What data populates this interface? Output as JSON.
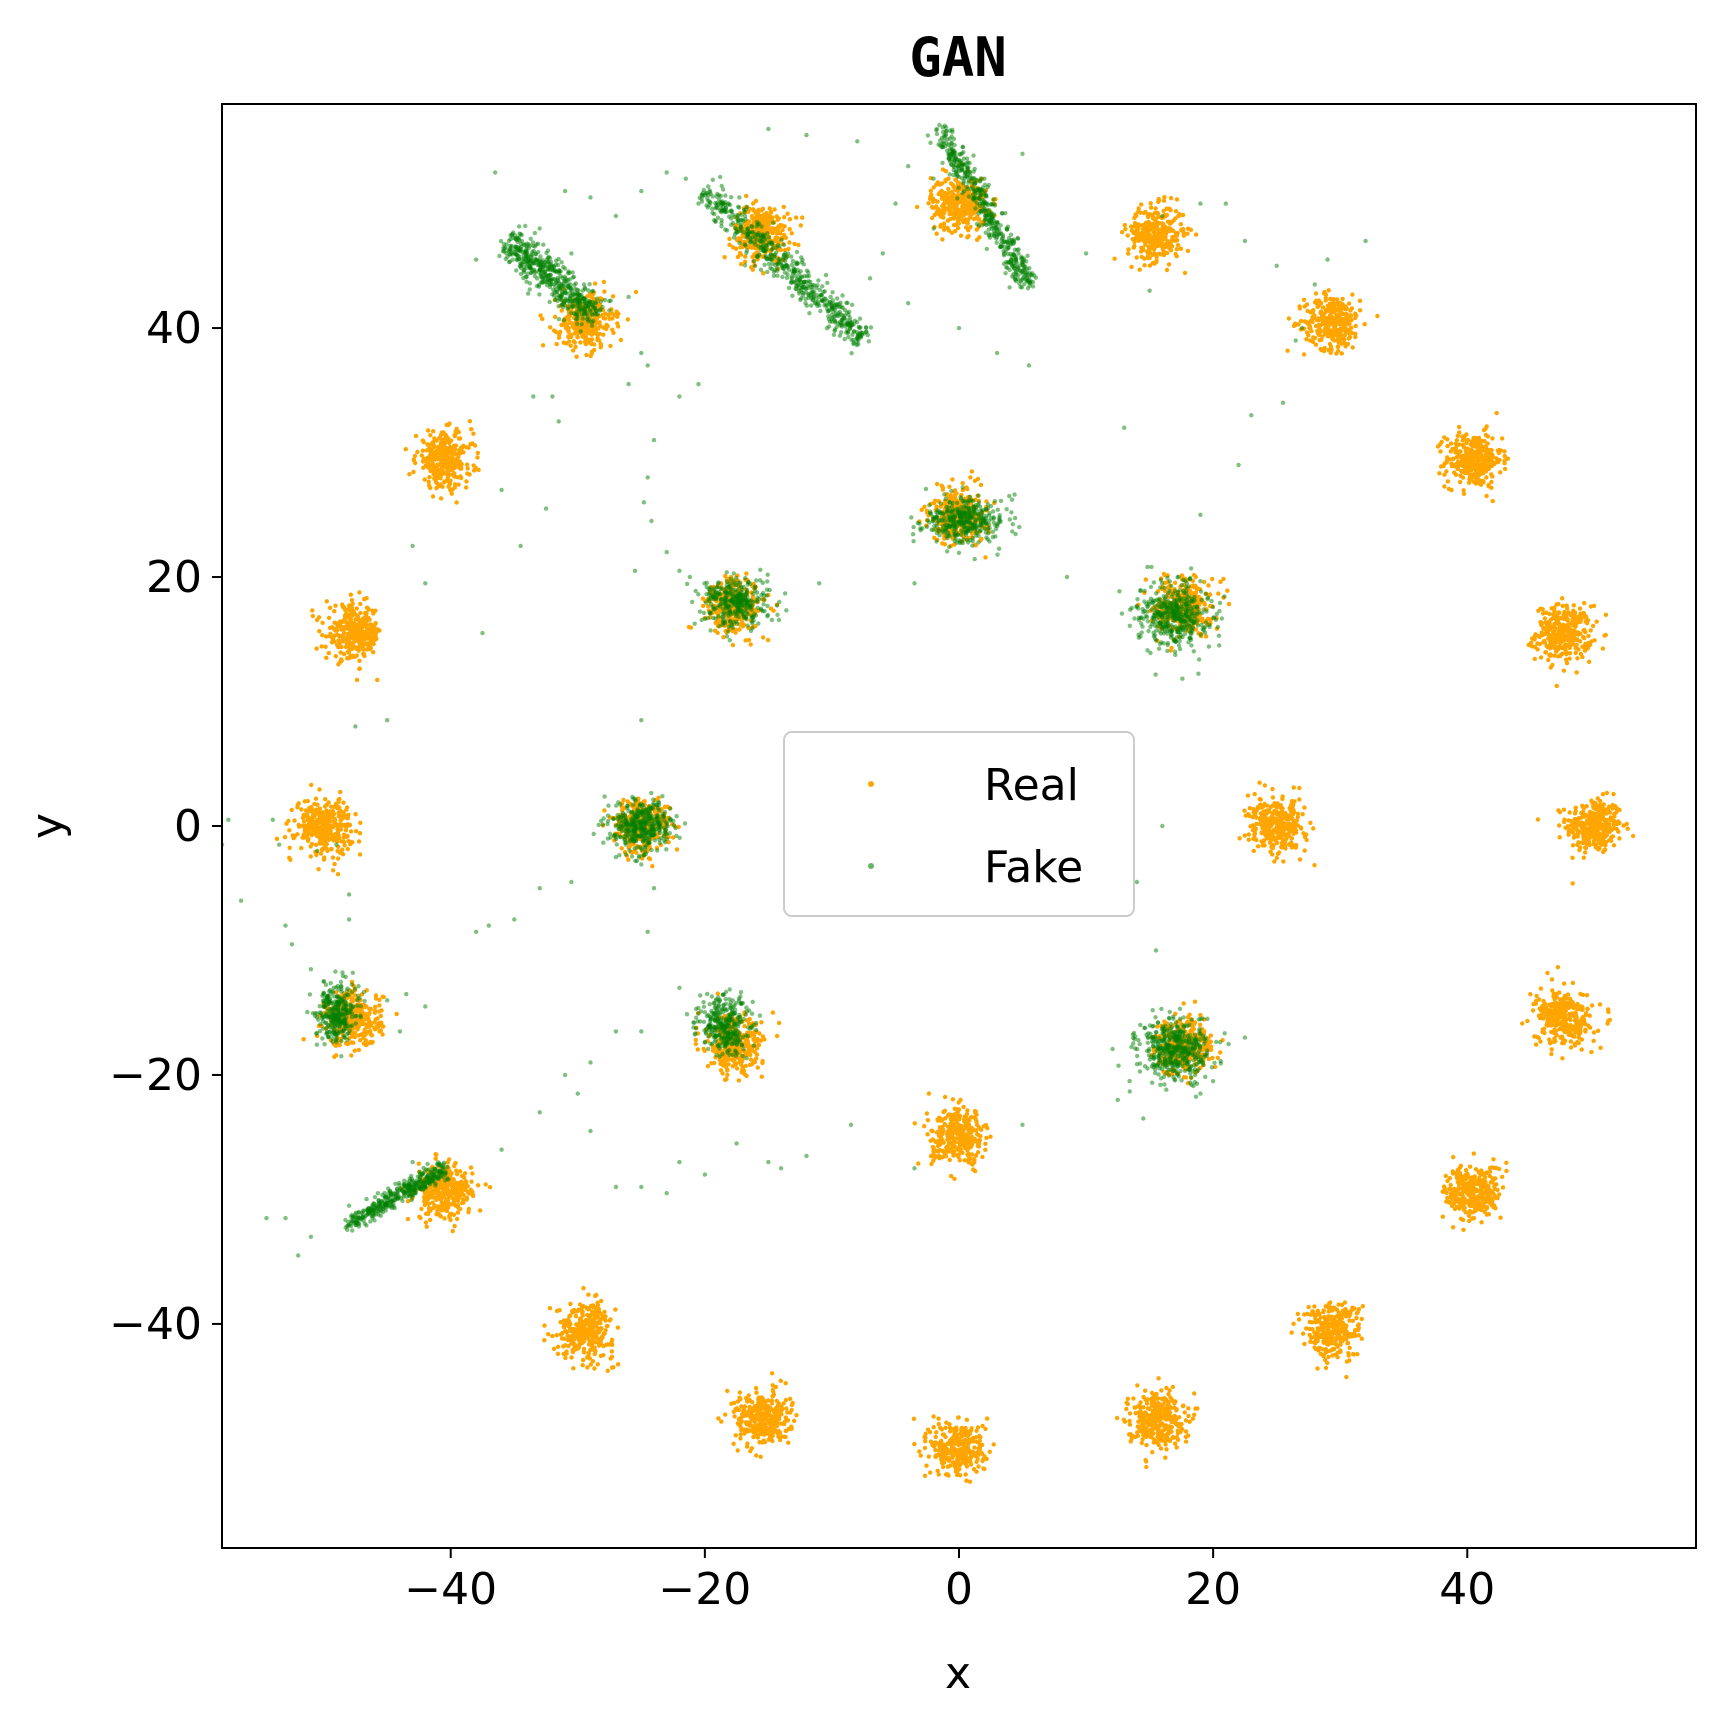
{
  "chart_data": {
    "type": "scatter",
    "title": "GAN",
    "xlabel": "x",
    "ylabel": "y",
    "xlim": [
      -58,
      58
    ],
    "ylim": [
      -58,
      58
    ],
    "xticks": [
      -40,
      -20,
      0,
      20,
      40
    ],
    "yticks": [
      -40,
      -20,
      0,
      20,
      40
    ],
    "xtick_labels": [
      "−40",
      "−20",
      "0",
      "20",
      "40"
    ],
    "ytick_labels": [
      "−40",
      "−20",
      "0",
      "20",
      "40"
    ],
    "grid": false,
    "legend_position": "center",
    "series": [
      {
        "name": "Real",
        "color": "#ffa500",
        "points_per_cluster": 320,
        "cluster_std": 1.1,
        "cluster_centers": [
          [
            50,
            0
          ],
          [
            47.6,
            15.5
          ],
          [
            40.5,
            29.4
          ],
          [
            29.4,
            40.5
          ],
          [
            15.5,
            47.6
          ],
          [
            0,
            50
          ],
          [
            -15.5,
            47.6
          ],
          [
            -29.4,
            40.5
          ],
          [
            -40.5,
            29.4
          ],
          [
            -47.6,
            15.5
          ],
          [
            -50,
            0
          ],
          [
            -47.6,
            -15.5
          ],
          [
            -40.5,
            -29.4
          ],
          [
            -29.4,
            -40.5
          ],
          [
            -15.5,
            -47.6
          ],
          [
            0,
            -50
          ],
          [
            15.5,
            -47.6
          ],
          [
            29.4,
            -40.5
          ],
          [
            40.5,
            -29.4
          ],
          [
            47.6,
            -15.5
          ],
          [
            25,
            0
          ],
          [
            17.7,
            17.7
          ],
          [
            0,
            25
          ],
          [
            -17.7,
            17.7
          ],
          [
            -25,
            0
          ],
          [
            -17.7,
            -17.7
          ],
          [
            0,
            -25
          ],
          [
            17.7,
            -17.7
          ]
        ]
      },
      {
        "name": "Fake",
        "color": "#008000",
        "opacity": 0.5,
        "blobs": [
          {
            "center": [
              -25,
              0
            ],
            "spread": [
              1.2,
              1.0
            ],
            "n": 380
          },
          {
            "center": [
              -17.5,
              18
            ],
            "spread": [
              1.3,
              1.0
            ],
            "n": 320
          },
          {
            "center": [
              17,
              17
            ],
            "spread": [
              1.4,
              1.3
            ],
            "n": 420
          },
          {
            "center": [
              0.5,
              24.5
            ],
            "spread": [
              1.6,
              0.9
            ],
            "n": 360
          },
          {
            "center": [
              -18.5,
              -16
            ],
            "spread": [
              1.0,
              1.2
            ],
            "n": 320
          },
          {
            "center": [
              17,
              -18
            ],
            "spread": [
              1.4,
              1.2
            ],
            "n": 440
          },
          {
            "center": [
              -49,
              -15
            ],
            "spread": [
              0.8,
              1.2
            ],
            "n": 300
          }
        ],
        "arcs": [
          {
            "from": [
              -35.5,
              47
            ],
            "to": [
              -28.5,
              41
            ],
            "width": 1.2,
            "n": 500
          },
          {
            "from": [
              -20,
              51
            ],
            "to": [
              -7.5,
              39
            ],
            "width": 1.0,
            "n": 550
          },
          {
            "from": [
              -1.5,
              56
            ],
            "to": [
              5.5,
              43.5
            ],
            "width": 0.8,
            "n": 450
          },
          {
            "from": [
              -48,
              -32
            ],
            "to": [
              -40.5,
              -27.5
            ],
            "width": 0.6,
            "n": 380
          }
        ],
        "scattered_points": [
          [
            -36.5,
            52.5
          ],
          [
            -33,
            48
          ],
          [
            -31,
            51
          ],
          [
            -29,
            50.5
          ],
          [
            -27,
            49
          ],
          [
            -25,
            51
          ],
          [
            -23,
            52.5
          ],
          [
            -21.5,
            52
          ],
          [
            -20.5,
            50
          ],
          [
            -15,
            56
          ],
          [
            -12,
            55.5
          ],
          [
            -8,
            55
          ],
          [
            -4,
            53
          ],
          [
            -2,
            52
          ],
          [
            2,
            52
          ],
          [
            5,
            54
          ],
          [
            -30.5,
            46
          ],
          [
            -26,
            42.5
          ],
          [
            -25,
            38
          ],
          [
            -24.5,
            37
          ],
          [
            -26,
            35.5
          ],
          [
            -22,
            34.5
          ],
          [
            -20.5,
            35.5
          ],
          [
            -32,
            34.5
          ],
          [
            -33.5,
            34.5
          ],
          [
            -31.5,
            32.5
          ],
          [
            -24,
            31
          ],
          [
            -24.5,
            28
          ],
          [
            -24.8,
            26
          ],
          [
            -24.2,
            24.5
          ],
          [
            -23,
            22
          ],
          [
            -22,
            20.5
          ],
          [
            -25.5,
            20.5
          ],
          [
            -21,
            18
          ],
          [
            -11,
            19.5
          ],
          [
            -3.5,
            19.5
          ],
          [
            8.5,
            20
          ],
          [
            -2,
            48
          ],
          [
            -5,
            50
          ],
          [
            -6,
            46
          ],
          [
            -7,
            44
          ],
          [
            -4,
            42
          ],
          [
            0,
            40
          ],
          [
            3,
            38
          ],
          [
            -9,
            41
          ],
          [
            -11,
            42.5
          ],
          [
            15,
            43
          ],
          [
            10,
            46
          ],
          [
            16,
            49
          ],
          [
            19,
            50
          ],
          [
            21,
            50
          ],
          [
            22.5,
            47
          ],
          [
            25,
            45
          ],
          [
            28,
            43.5
          ],
          [
            29,
            45.5
          ],
          [
            32,
            47
          ],
          [
            26.5,
            39
          ],
          [
            27,
            40
          ],
          [
            25.5,
            34
          ],
          [
            23,
            33
          ],
          [
            22,
            29
          ],
          [
            19,
            25
          ],
          [
            13,
            32
          ],
          [
            5.5,
            37
          ],
          [
            -38,
            45.5
          ],
          [
            -36,
            27
          ],
          [
            -32.5,
            25.5
          ],
          [
            -34.5,
            22.5
          ],
          [
            -43,
            22.5
          ],
          [
            -42,
            19.5
          ],
          [
            -37.5,
            15.5
          ],
          [
            -47.5,
            8
          ],
          [
            -45,
            8.5
          ],
          [
            -57.5,
            0.5
          ],
          [
            -58,
            -1.5
          ],
          [
            -56.5,
            -6
          ],
          [
            -54,
            0.5
          ],
          [
            -53.5,
            -1.5
          ],
          [
            -50.5,
            -2
          ],
          [
            -49,
            -1.5
          ],
          [
            -48,
            -5.5
          ],
          [
            -48,
            -7.5
          ],
          [
            -53,
            -8
          ],
          [
            -52.5,
            -9.5
          ],
          [
            -51,
            -11.5
          ],
          [
            -50,
            -12.5
          ],
          [
            -45,
            -14
          ],
          [
            -43.5,
            -13.5
          ],
          [
            -42,
            -14.5
          ],
          [
            -44,
            -16.5
          ],
          [
            -27,
            -2.5
          ],
          [
            -30.5,
            -4.5
          ],
          [
            -33,
            -5
          ],
          [
            -35,
            -7.5
          ],
          [
            -37,
            -8
          ],
          [
            -38,
            -8.5
          ],
          [
            -25,
            8.5
          ],
          [
            -24,
            -5
          ],
          [
            -24.5,
            -8.5
          ],
          [
            -22,
            -13
          ],
          [
            -25,
            -16.5
          ],
          [
            -27,
            -16.5
          ],
          [
            -29,
            -19
          ],
          [
            -31,
            -20
          ],
          [
            -30,
            -21.5
          ],
          [
            -33,
            -23
          ],
          [
            -29,
            -24.5
          ],
          [
            -36,
            -26
          ],
          [
            -43,
            -27
          ],
          [
            -44.5,
            -29.5
          ],
          [
            -48,
            -30.5
          ],
          [
            -53,
            -31.5
          ],
          [
            -54.5,
            -31.5
          ],
          [
            -51,
            -33
          ],
          [
            -52,
            -34.5
          ],
          [
            -22,
            -27
          ],
          [
            -25,
            -29
          ],
          [
            -27,
            -29
          ],
          [
            -23,
            -29.5
          ],
          [
            -20,
            -28
          ],
          [
            -17.5,
            -25.5
          ],
          [
            -15,
            -27
          ],
          [
            -12,
            -26.5
          ],
          [
            -14,
            -27.5
          ],
          [
            -8.5,
            -24
          ],
          [
            -3.5,
            -27.5
          ],
          [
            5,
            -24
          ],
          [
            12.5,
            -22
          ],
          [
            14.5,
            -23.5
          ],
          [
            19,
            -21.5
          ],
          [
            20,
            -20.5
          ],
          [
            22.5,
            -17
          ],
          [
            15.5,
            -10
          ],
          [
            14,
            -4.5
          ],
          [
            16,
            0
          ]
        ]
      }
    ],
    "legend": {
      "entries": [
        "Real",
        "Fake"
      ]
    }
  }
}
